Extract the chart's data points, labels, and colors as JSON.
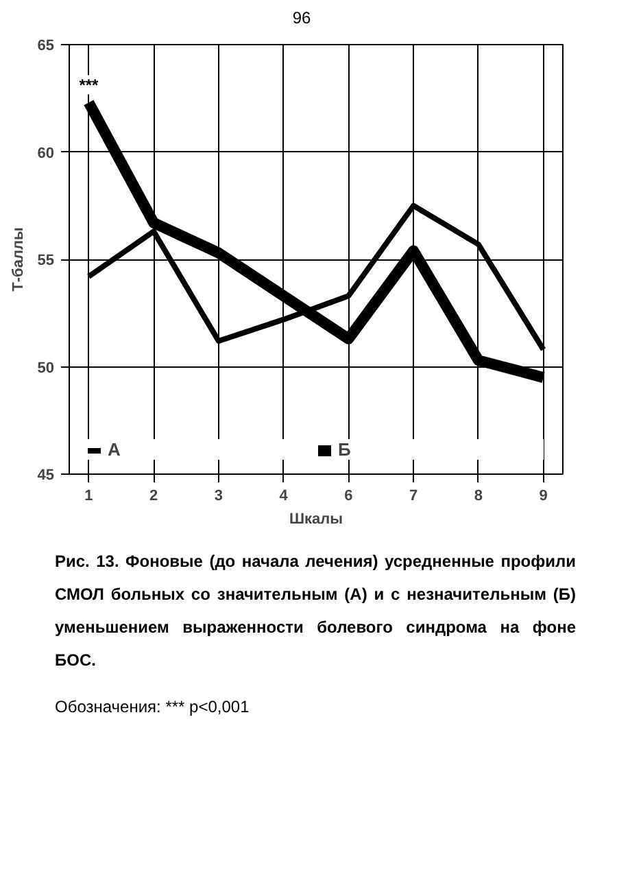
{
  "chart_data": {
    "type": "line",
    "xlabel": "Шкалы",
    "ylabel": "Т-баллы",
    "categories": [
      "1",
      "2",
      "3",
      "4",
      "6",
      "7",
      "8",
      "9"
    ],
    "series": [
      {
        "name": "А",
        "color": "#000000",
        "values": [
          54.2,
          56.3,
          51.2,
          52.2,
          53.3,
          57.5,
          55.7,
          50.8
        ]
      },
      {
        "name": "Б",
        "color": "#000000",
        "values": [
          62.3,
          56.7,
          55.3,
          53.3,
          51.3,
          55.4,
          50.3,
          49.5
        ]
      }
    ],
    "ylim": [
      45,
      65
    ],
    "yticks": [
      45,
      50,
      55,
      60,
      65
    ],
    "grid": true,
    "legend": "bottom",
    "marker": "none",
    "line_style": "solid",
    "annotations": [
      "96",
      {
        "text": "***",
        "x": "1",
        "y": 62.3
      },
      "Рис. 13. Фоновые (до начала лечения) усредненные профили СМОЛ больных со значительным (А) и с незначительным (Б) уменьшением выраженности болевого синдрома на фоне БОС.",
      "Обозначения: ***    p<0,001"
    ]
  }
}
